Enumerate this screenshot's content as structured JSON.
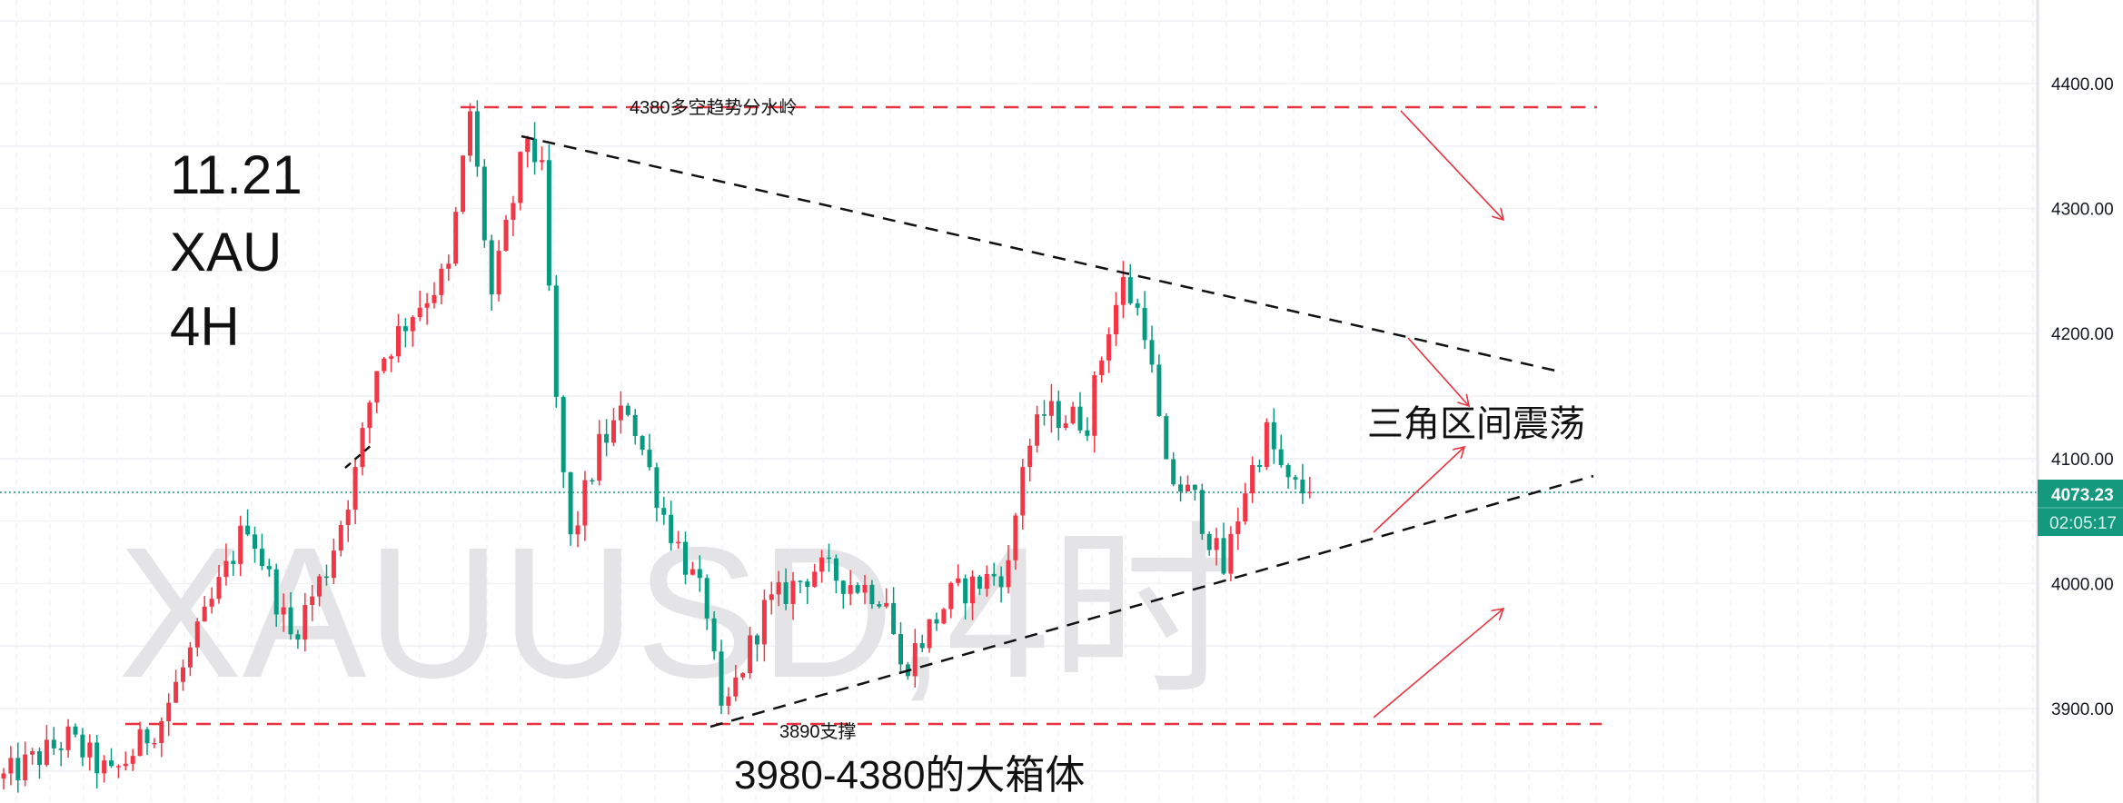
{
  "chart_data": {
    "type": "candlestick",
    "symbol_watermark": "XAUUSD,4时",
    "title_lines": [
      "11.21",
      "XAU",
      "4H"
    ],
    "ylim": [
      3830,
      4450
    ],
    "y_ticks": [
      "4400.00",
      "4300.00",
      "4200.00",
      "4100.00",
      "4000.00",
      "3900.00"
    ],
    "y_tick_values": [
      4400,
      4300,
      4200,
      4100,
      4000,
      3900
    ],
    "last_price": 4073.23,
    "last_price_label": "4073.23",
    "countdown": "02:05:17",
    "candle_count": 183,
    "price_path_keypoints": [
      [
        0,
        3844
      ],
      [
        9,
        3876
      ],
      [
        15,
        3845
      ],
      [
        22,
        3892
      ],
      [
        34,
        4050
      ],
      [
        40,
        3957
      ],
      [
        45,
        4012
      ],
      [
        49,
        4088
      ],
      [
        52,
        4174
      ],
      [
        57,
        4218
      ],
      [
        62,
        4250
      ],
      [
        65,
        4378
      ],
      [
        68,
        4229
      ],
      [
        73,
        4359
      ],
      [
        75,
        4326
      ],
      [
        77,
        4142
      ],
      [
        79,
        4033
      ],
      [
        83,
        4109
      ],
      [
        87,
        4142
      ],
      [
        92,
        4055
      ],
      [
        98,
        3979
      ],
      [
        100,
        3890
      ],
      [
        106,
        3979
      ],
      [
        113,
        4012
      ],
      [
        123,
        3990
      ],
      [
        125,
        3930
      ],
      [
        132,
        3990
      ],
      [
        140,
        4012
      ],
      [
        142,
        4098
      ],
      [
        145,
        4136
      ],
      [
        151,
        4131
      ],
      [
        154,
        4207
      ],
      [
        156,
        4240
      ],
      [
        159,
        4207
      ],
      [
        162,
        4088
      ],
      [
        166,
        4066
      ],
      [
        170,
        4010
      ],
      [
        173,
        4077
      ],
      [
        176,
        4120
      ],
      [
        179,
        4077
      ],
      [
        182,
        4073
      ]
    ],
    "levels": [
      {
        "price": 4380,
        "label": "4380多空趋势分水岭"
      },
      {
        "price": 3890,
        "label": "3890支撑"
      }
    ],
    "box_label": "3980-4380的大箱体",
    "pattern_label": "三角区间震荡",
    "colors": {
      "up": "#f23645",
      "down": "#089981",
      "level": "#e8323f",
      "trend": "#111111",
      "price_tag": "#14997f",
      "watermark": "#e4e4e6"
    }
  }
}
